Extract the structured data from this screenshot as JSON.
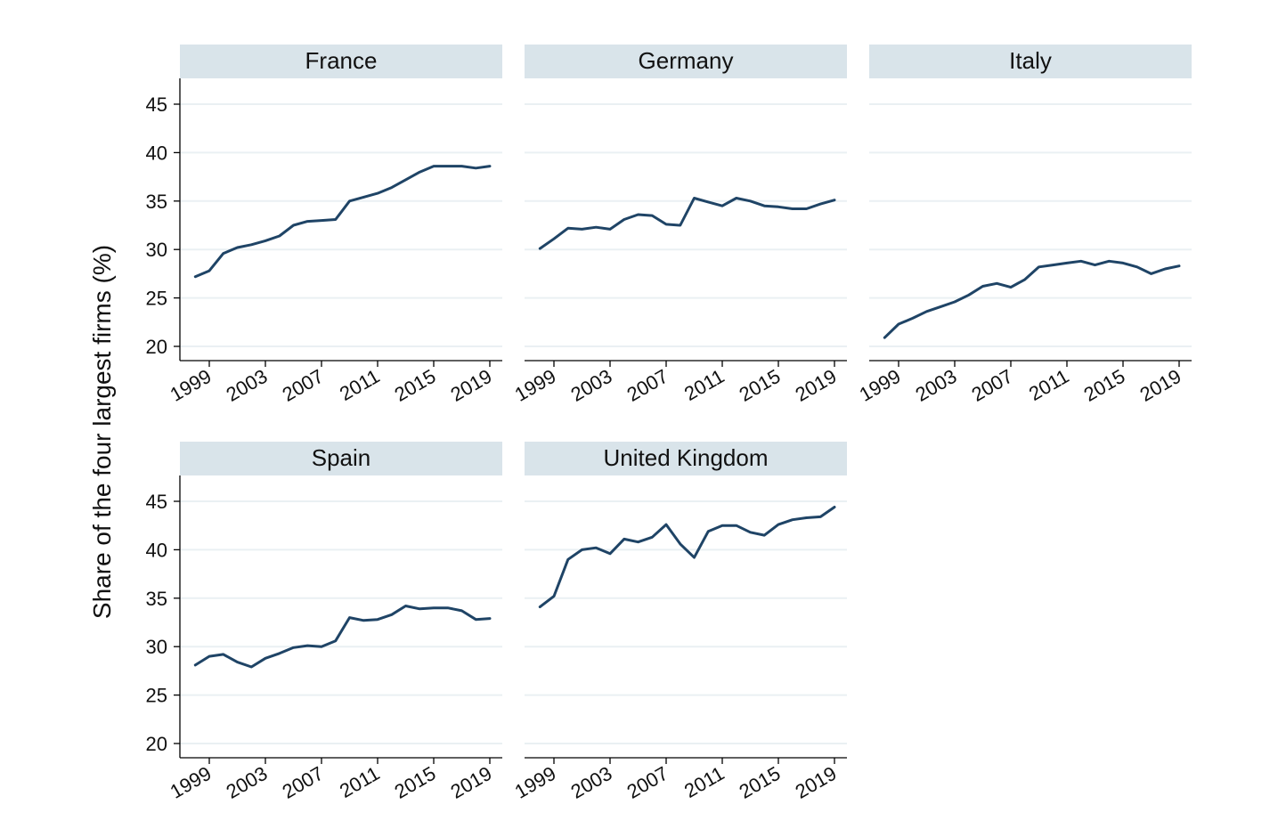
{
  "chart_data": {
    "type": "line",
    "layout": "facet-grid",
    "ylabel": "Share of the four largest firms (%)",
    "xlabel": "",
    "ylim": [
      18.5,
      47.5
    ],
    "yticks": [
      20,
      25,
      30,
      35,
      40,
      45
    ],
    "xlim": [
      1997,
      2020
    ],
    "xticks": [
      1999,
      2003,
      2007,
      2011,
      2015,
      2019
    ],
    "grid": true,
    "legend": "none",
    "line_color": "#1f4466",
    "strip_color": "#d9e4ea",
    "panels": [
      {
        "name": "France",
        "x": [
          1998,
          1999,
          2000,
          2001,
          2002,
          2003,
          2004,
          2005,
          2006,
          2007,
          2008,
          2009,
          2010,
          2011,
          2012,
          2013,
          2014,
          2015,
          2016,
          2017,
          2018,
          2019
        ],
        "y": [
          27.2,
          27.8,
          29.6,
          30.2,
          30.5,
          30.9,
          31.4,
          32.5,
          32.9,
          33.0,
          33.1,
          35.0,
          35.4,
          35.8,
          36.4,
          37.2,
          38.0,
          38.6,
          38.6,
          38.6,
          38.4,
          38.6
        ]
      },
      {
        "name": "Germany",
        "x": [
          1998,
          1999,
          2000,
          2001,
          2002,
          2003,
          2004,
          2005,
          2006,
          2007,
          2008,
          2009,
          2010,
          2011,
          2012,
          2013,
          2014,
          2015,
          2016,
          2017,
          2018,
          2019
        ],
        "y": [
          30.1,
          31.1,
          32.2,
          32.1,
          32.3,
          32.1,
          33.1,
          33.6,
          33.5,
          32.6,
          32.5,
          35.3,
          34.9,
          34.5,
          35.3,
          35.0,
          34.5,
          34.4,
          34.2,
          34.2,
          34.7,
          35.1
        ]
      },
      {
        "name": "Italy",
        "x": [
          1998,
          1999,
          2000,
          2001,
          2002,
          2003,
          2004,
          2005,
          2006,
          2007,
          2008,
          2009,
          2010,
          2011,
          2012,
          2013,
          2014,
          2015,
          2016,
          2017,
          2018,
          2019
        ],
        "y": [
          20.9,
          22.3,
          22.9,
          23.6,
          24.1,
          24.6,
          25.3,
          26.2,
          26.5,
          26.1,
          26.9,
          28.2,
          28.4,
          28.6,
          28.8,
          28.4,
          28.8,
          28.6,
          28.2,
          27.5,
          28.0,
          28.3
        ]
      },
      {
        "name": "Spain",
        "x": [
          1998,
          1999,
          2000,
          2001,
          2002,
          2003,
          2004,
          2005,
          2006,
          2007,
          2008,
          2009,
          2010,
          2011,
          2012,
          2013,
          2014,
          2015,
          2016,
          2017,
          2018,
          2019
        ],
        "y": [
          28.1,
          29.0,
          29.2,
          28.4,
          27.9,
          28.8,
          29.3,
          29.9,
          30.1,
          30.0,
          30.6,
          33.0,
          32.7,
          32.8,
          33.3,
          34.2,
          33.9,
          34.0,
          34.0,
          33.7,
          32.8,
          32.9
        ]
      },
      {
        "name": "United Kingdom",
        "x": [
          1998,
          1999,
          2000,
          2001,
          2002,
          2003,
          2004,
          2005,
          2006,
          2007,
          2008,
          2009,
          2010,
          2011,
          2012,
          2013,
          2014,
          2015,
          2016,
          2017,
          2018,
          2019
        ],
        "y": [
          34.1,
          35.2,
          39.0,
          40.0,
          40.2,
          39.6,
          41.1,
          40.8,
          41.3,
          42.6,
          40.6,
          39.2,
          41.9,
          42.5,
          42.5,
          41.8,
          41.5,
          42.6,
          43.1,
          43.3,
          43.4,
          44.4
        ]
      }
    ]
  }
}
